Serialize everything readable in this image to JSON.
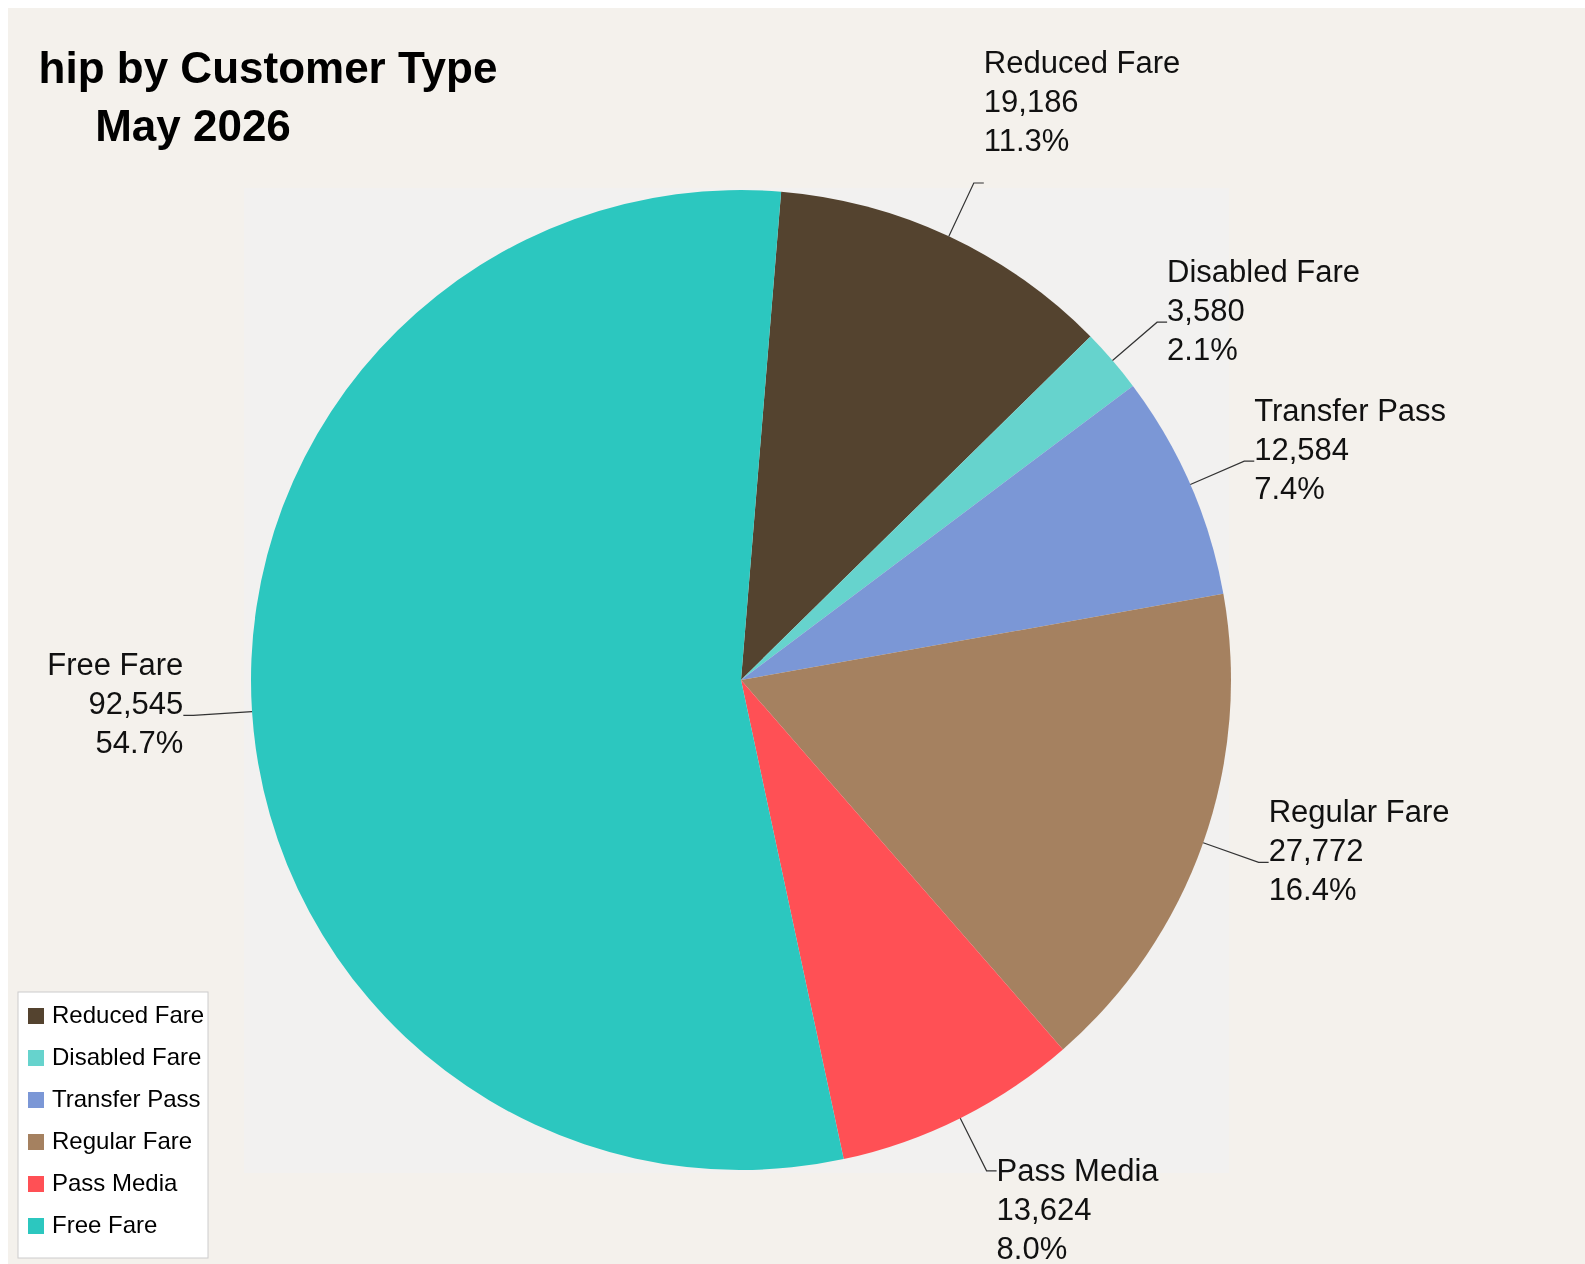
{
  "chart_data": {
    "type": "pie",
    "title": "hip by Customer Type",
    "subtitle": "May 2026",
    "categories": [
      "Reduced Fare",
      "Disabled Fare",
      "Transfer Pass",
      "Regular Fare",
      "Pass Media",
      "Free Fare"
    ],
    "values": [
      19186,
      3580,
      12584,
      27772,
      13624,
      92545
    ],
    "colors": [
      "#54432f",
      "#66d3cd",
      "#7b97d6",
      "#a58160",
      "#ff5055",
      "#2cc7bf"
    ],
    "value_labels": [
      "19,186\n11.3%",
      "3,580\n2.1%",
      "12,584\n7.4%",
      "27,772\n16.4%",
      "13,624\n8.0%",
      "92,545\n54.7%"
    ],
    "legend": "bottom left"
  }
}
